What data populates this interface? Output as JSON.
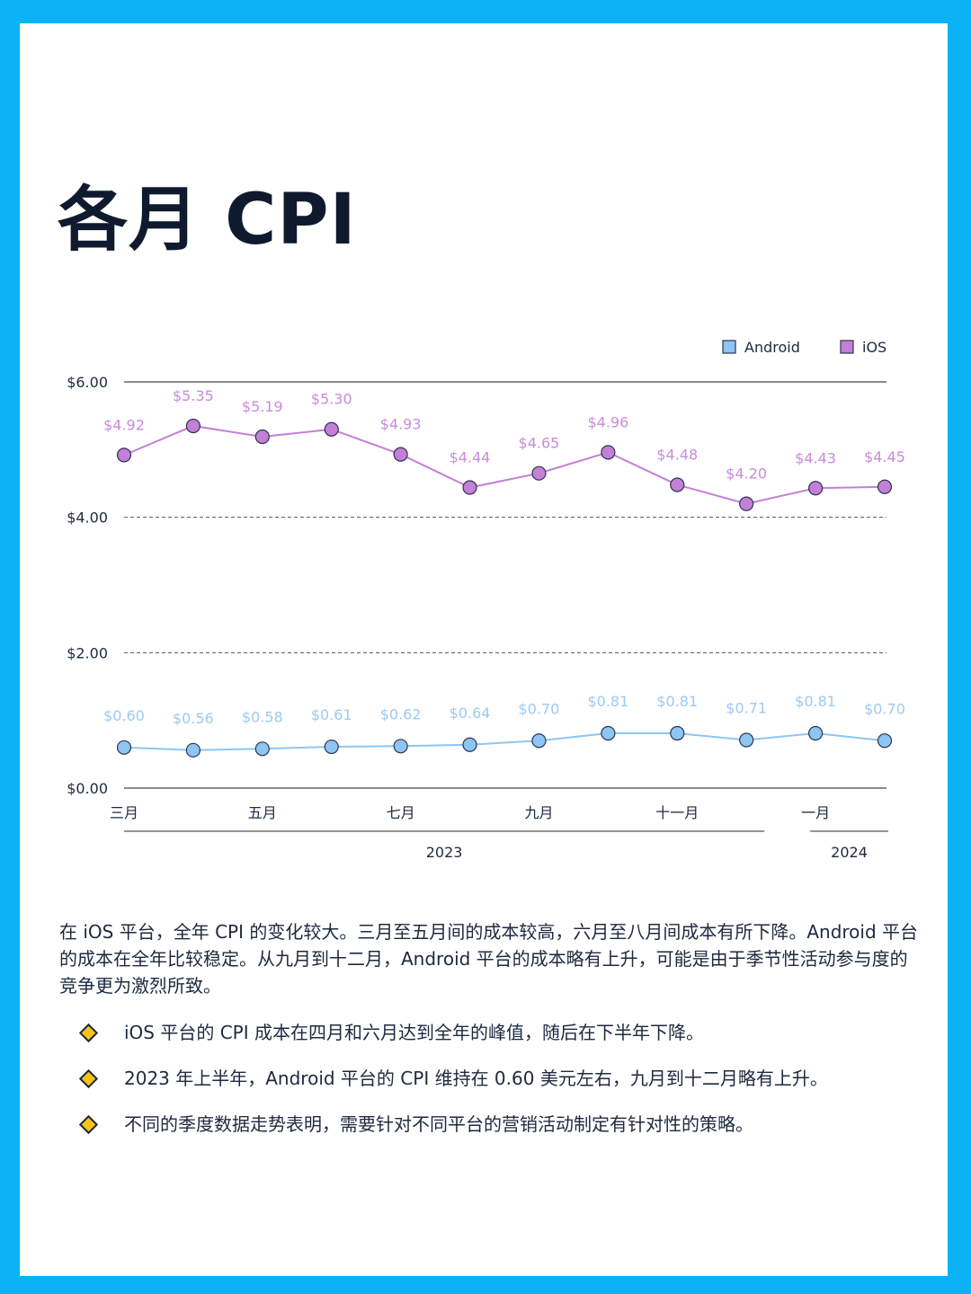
{
  "page": {
    "title": "各月 CPI",
    "paragraph": "在 iOS 平台，全年 CPI 的变化较大。三月至五月间的成本较高，六月至八月间成本有所下降。Android 平台的成本在全年比较稳定。从九月到十二月，Android 平台的成本略有上升，可能是由于季节性活动参与度的竞争更为激烈所致。",
    "bullets": [
      "iOS 平台的 CPI 成本在四月和六月达到全年的峰值，随后在下半年下降。",
      "2023 年上半年，Android 平台的 CPI 维持在 0.60 美元左右，九月到十二月略有上升。",
      "不同的季度数据走势表明，需要针对不同平台的营销活动制定有针对性的策略。"
    ]
  },
  "colors": {
    "frame": "#0bb3f5",
    "android": "#8ec5f2",
    "android_label": "#9ccaf0",
    "ios": "#c47fd6",
    "ios_label": "#c98bdc",
    "bullet_diamond": "#f7c21a"
  },
  "chart_data": {
    "type": "line",
    "title": "",
    "xlabel": "",
    "ylabel": "",
    "ylim": [
      0,
      6
    ],
    "y_ticks": [
      0,
      2,
      4,
      6
    ],
    "y_tick_labels": [
      "$0.00",
      "$2.00",
      "$4.00",
      "$6.00"
    ],
    "grid": "horizontal dashed",
    "legend_position": "top-right",
    "x_tick_labels": [
      "三月",
      "",
      "五月",
      "",
      "七月",
      "",
      "九月",
      "",
      "十一月",
      "",
      "一月",
      ""
    ],
    "year_groups": [
      {
        "label": "2023",
        "from": 0,
        "to": 9
      },
      {
        "label": "2024",
        "from": 10,
        "to": 11
      }
    ],
    "series": [
      {
        "name": "Android",
        "values": [
          0.6,
          0.56,
          0.58,
          0.61,
          0.62,
          0.64,
          0.7,
          0.81,
          0.81,
          0.71,
          0.81,
          0.7
        ],
        "labels": [
          "$0.60",
          "$0.56",
          "$0.58",
          "$0.61",
          "$0.62",
          "$0.64",
          "$0.70",
          "$0.81",
          "$0.81",
          "$0.71",
          "$0.81",
          "$0.70"
        ]
      },
      {
        "name": "iOS",
        "values": [
          4.92,
          5.35,
          5.19,
          5.3,
          4.93,
          4.44,
          4.65,
          4.96,
          4.48,
          4.2,
          4.43,
          4.45
        ],
        "labels": [
          "$4.92",
          "$5.35",
          "$5.19",
          "$5.30",
          "$4.93",
          "$4.44",
          "$4.65",
          "$4.96",
          "$4.48",
          "$4.20",
          "$4.43",
          "$4.45"
        ]
      }
    ]
  }
}
